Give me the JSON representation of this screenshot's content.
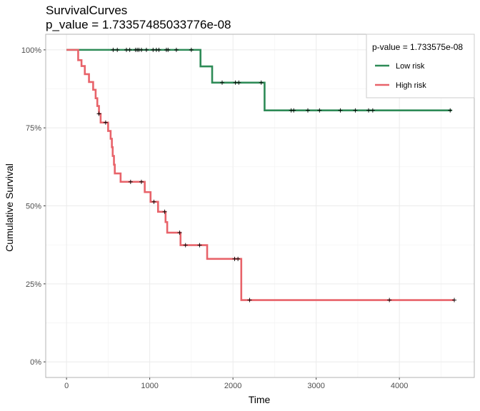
{
  "chart_data": {
    "type": "line",
    "title": "SurvivalCurves",
    "subtitle": "p_value = 1.73357485033776e-08",
    "xlabel": "Time",
    "ylabel": "Cumulative Survival",
    "xlim": [
      -250,
      4900
    ],
    "ylim": [
      -0.05,
      1.05
    ],
    "x_ticks": [
      0,
      1000,
      2000,
      3000,
      4000
    ],
    "x_tick_labels": [
      "0",
      "1000",
      "2000",
      "3000",
      "4000"
    ],
    "y_ticks": [
      0,
      0.25,
      0.5,
      0.75,
      1.0
    ],
    "y_tick_labels": [
      "0%",
      "25%",
      "50%",
      "75%",
      "100%"
    ],
    "grid": true,
    "legend": {
      "title": "p-value = 1.733575e-08",
      "position": "top-right",
      "entries": [
        "Low risk",
        "High risk"
      ]
    },
    "series": [
      {
        "name": "Low risk",
        "color": "#2e8b57",
        "steps": [
          [
            0,
            1.0
          ],
          [
            1610,
            0.947
          ],
          [
            1750,
            0.895
          ],
          [
            2380,
            0.806
          ],
          [
            4630,
            0.806
          ]
        ],
        "censor_x": [
          560,
          610,
          720,
          760,
          830,
          850,
          870,
          900,
          960,
          1040,
          1080,
          1110,
          1200,
          1220,
          1320,
          1500,
          1870,
          2030,
          2070,
          2340,
          2700,
          2730,
          2900,
          3040,
          3290,
          3470,
          3630,
          3680,
          4610
        ]
      },
      {
        "name": "High risk",
        "color": "#e8636a",
        "steps": [
          [
            0,
            1.0
          ],
          [
            140,
            0.967
          ],
          [
            180,
            0.948
          ],
          [
            220,
            0.922
          ],
          [
            270,
            0.897
          ],
          [
            320,
            0.872
          ],
          [
            350,
            0.845
          ],
          [
            370,
            0.82
          ],
          [
            390,
            0.795
          ],
          [
            410,
            0.767
          ],
          [
            500,
            0.74
          ],
          [
            530,
            0.715
          ],
          [
            545,
            0.688
          ],
          [
            555,
            0.66
          ],
          [
            570,
            0.632
          ],
          [
            580,
            0.604
          ],
          [
            650,
            0.577
          ],
          [
            940,
            0.544
          ],
          [
            1010,
            0.513
          ],
          [
            1100,
            0.481
          ],
          [
            1190,
            0.448
          ],
          [
            1210,
            0.414
          ],
          [
            1370,
            0.374
          ],
          [
            1690,
            0.33
          ],
          [
            2100,
            0.198
          ],
          [
            4660,
            0.198
          ]
        ],
        "censor_x": [
          390,
          470,
          770,
          900,
          1050,
          1180,
          1360,
          1430,
          1600,
          2020,
          2060,
          2200,
          3880,
          4660
        ]
      }
    ]
  }
}
